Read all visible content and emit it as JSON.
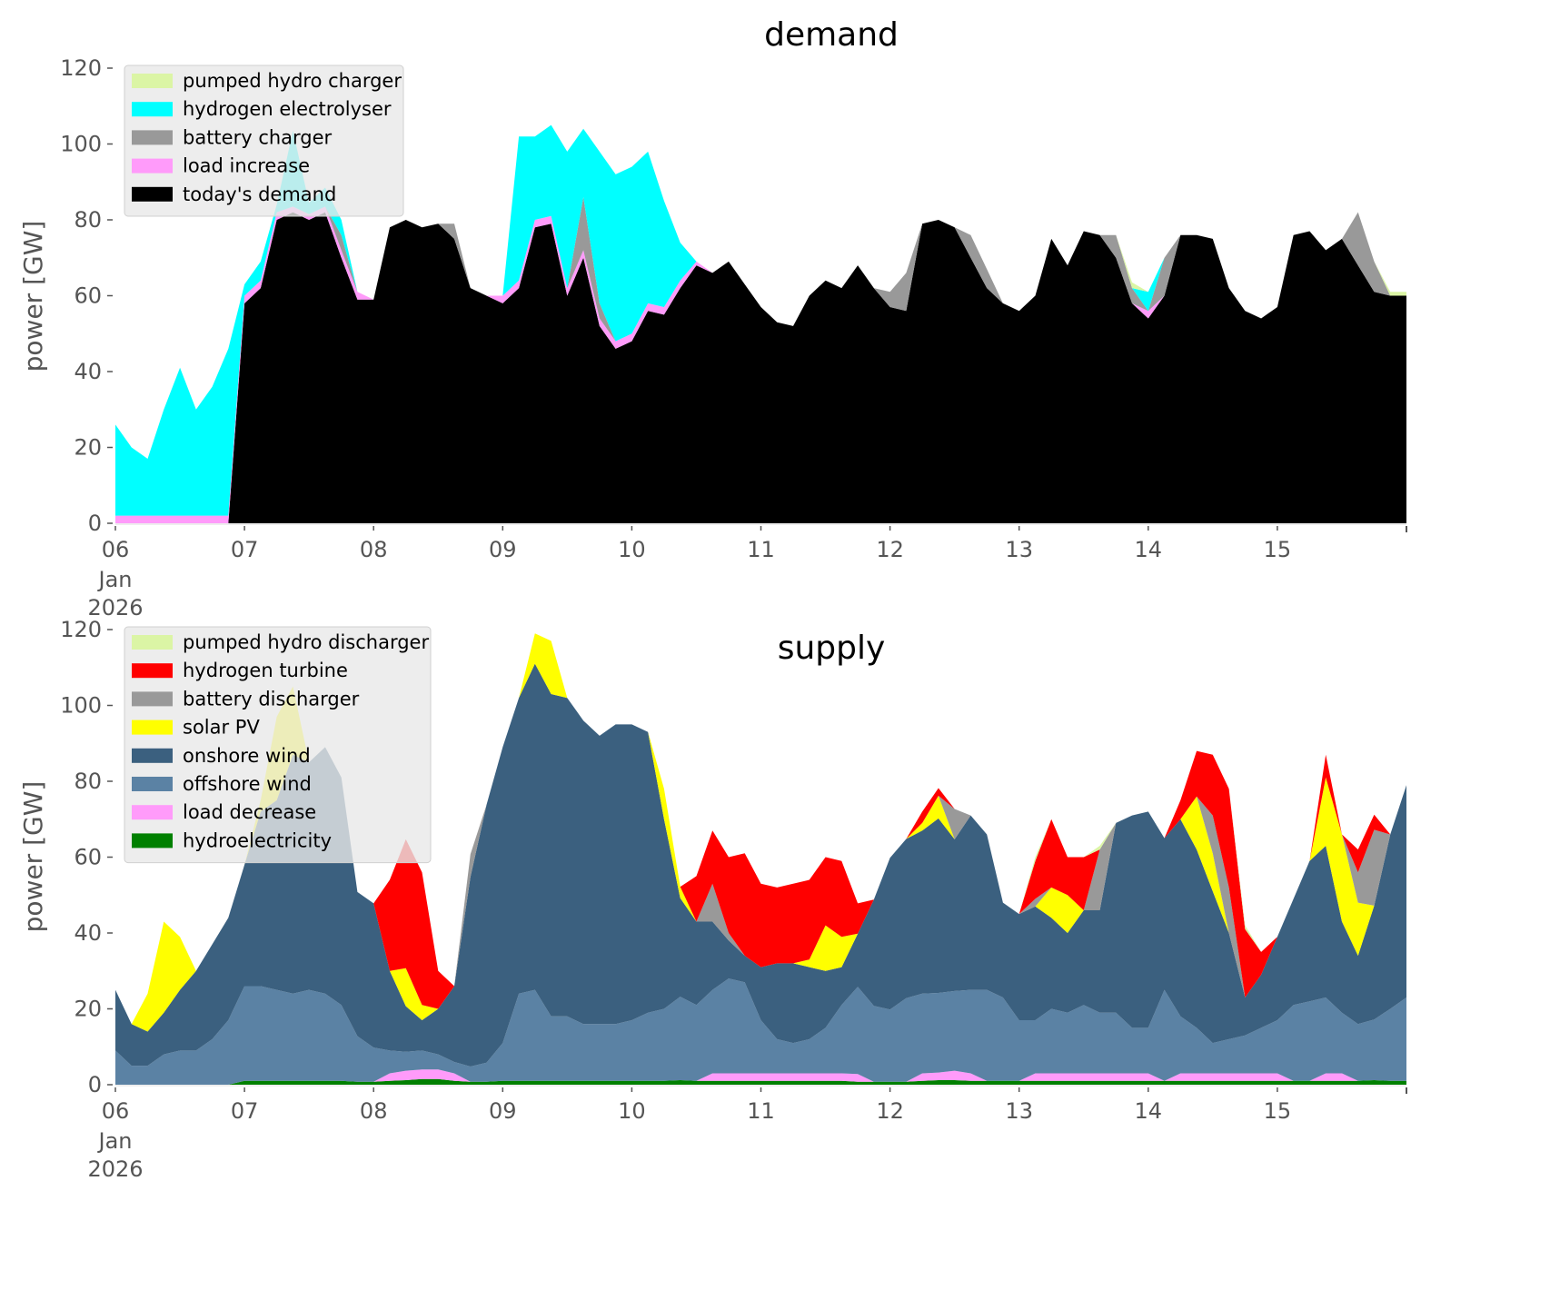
{
  "chart_data": [
    {
      "type": "area",
      "stacked": true,
      "title": "demand",
      "xlabel": "",
      "ylabel": "power [GW]",
      "ylim": [
        0,
        120
      ],
      "yticks": [
        0,
        20,
        40,
        60,
        80,
        100,
        120
      ],
      "x_unit": "days since 06 Jan 2026 00:00",
      "xlim": [
        0,
        10
      ],
      "x_step_hours": 3,
      "xtick_labels": [
        "06",
        "07",
        "08",
        "09",
        "10",
        "11",
        "12",
        "13",
        "14",
        "15"
      ],
      "xtick_sublabel": [
        "Jan",
        "2026"
      ],
      "grid": false,
      "legend_position": "top-left",
      "legend": [
        "pumped hydro charger",
        "hydrogen electrolyser",
        "battery charger",
        "load increase",
        "today's demand"
      ],
      "series": [
        {
          "name": "today's demand",
          "color": "#000000",
          "values": [
            0,
            0,
            0,
            0,
            0,
            0,
            0,
            0,
            58,
            62,
            80,
            82,
            80,
            82,
            70,
            59,
            59,
            78,
            80,
            78,
            79,
            75,
            62,
            60,
            58,
            62,
            78,
            79,
            60,
            70,
            52,
            46,
            48,
            56,
            55,
            62,
            68,
            66,
            69,
            63,
            57,
            53,
            52,
            60,
            64,
            62,
            68,
            62,
            57,
            56,
            79,
            80,
            78,
            70,
            62,
            58,
            56,
            60,
            75,
            68,
            77,
            76,
            70,
            58,
            54,
            60,
            76,
            76,
            75,
            62,
            56,
            54,
            57,
            76,
            77,
            72,
            75,
            68,
            61,
            60,
            60
          ]
        },
        {
          "name": "load increase",
          "color": "#ff9bfa",
          "values": [
            2,
            2,
            2,
            2,
            2,
            2,
            2,
            2,
            2,
            2,
            2,
            1.5,
            1.5,
            1.5,
            2,
            2,
            0,
            0,
            0,
            0,
            0,
            0,
            0,
            0,
            2,
            2,
            2,
            2,
            2,
            2,
            2,
            2,
            2,
            2,
            2,
            2,
            1,
            0,
            0,
            0,
            0,
            0,
            0,
            0,
            0,
            0,
            0,
            0,
            0,
            0,
            0,
            0,
            0,
            0,
            0,
            0,
            0,
            0,
            0,
            0,
            0,
            0,
            0,
            0,
            2,
            0,
            0,
            0,
            0,
            0,
            0,
            0,
            0,
            0,
            0,
            0,
            0,
            0,
            0,
            0,
            0
          ]
        },
        {
          "name": "battery charger",
          "color": "#999999",
          "values": [
            0,
            0,
            0,
            0,
            0,
            0,
            0,
            0,
            0,
            0,
            0,
            0,
            0,
            0,
            4,
            0,
            0,
            0,
            0,
            0,
            0,
            4,
            0,
            0,
            0,
            0,
            0,
            0,
            0,
            14,
            4,
            0,
            0,
            0,
            0,
            0,
            0,
            0,
            0,
            0,
            0,
            0,
            0,
            0,
            0,
            0,
            0,
            0,
            4,
            10,
            0,
            0,
            0,
            6,
            5,
            0,
            0,
            0,
            0,
            0,
            0,
            0,
            6,
            4,
            0,
            10,
            0,
            0,
            0,
            0,
            0,
            0,
            0,
            0,
            0,
            0,
            0,
            14,
            8,
            0,
            0
          ]
        },
        {
          "name": "hydrogen electrolyser",
          "color": "#00ffff",
          "values": [
            24,
            18,
            15,
            28,
            39,
            28,
            34,
            44,
            3,
            5,
            2,
            20,
            3,
            5,
            4,
            0,
            0,
            0,
            0,
            0,
            0,
            0,
            0,
            0,
            0,
            38,
            22,
            24,
            36,
            18,
            40,
            44,
            44,
            40,
            28,
            10,
            0,
            0,
            0,
            0,
            0,
            0,
            0,
            0,
            0,
            0,
            0,
            0,
            0,
            0,
            0,
            0,
            0,
            0,
            0,
            0,
            0,
            0,
            0,
            0,
            0,
            0,
            0,
            0,
            5,
            0,
            0,
            0,
            0,
            0,
            0,
            0,
            0,
            0,
            0,
            0,
            0,
            0,
            0,
            0,
            0
          ]
        },
        {
          "name": "pumped hydro charger",
          "color": "#dbf5a5",
          "values": [
            0,
            0,
            0,
            0,
            0,
            0,
            0,
            0,
            0,
            0,
            0,
            0,
            0,
            0,
            0,
            0,
            0,
            0,
            0,
            0,
            0,
            0,
            0,
            0,
            0,
            0,
            0,
            0,
            0,
            0,
            0,
            0,
            0,
            0,
            0,
            0,
            0,
            0,
            0,
            0,
            0,
            0,
            0,
            0,
            0,
            0,
            0,
            0,
            0,
            0,
            0,
            0,
            0,
            0,
            0,
            0,
            0,
            0,
            0,
            0,
            0,
            0,
            0,
            1.5,
            0,
            0,
            0,
            0,
            0,
            0,
            0,
            0,
            0,
            0,
            0,
            0,
            0,
            0,
            0,
            1,
            1
          ]
        }
      ]
    },
    {
      "type": "area",
      "stacked": true,
      "title": "supply",
      "xlabel": "",
      "ylabel": "power [GW]",
      "ylim": [
        0,
        120
      ],
      "yticks": [
        0,
        20,
        40,
        60,
        80,
        100,
        120
      ],
      "x_unit": "days since 06 Jan 2026 00:00",
      "xlim": [
        0,
        10
      ],
      "x_step_hours": 3,
      "xtick_labels": [
        "06",
        "07",
        "08",
        "09",
        "10",
        "11",
        "12",
        "13",
        "14",
        "15"
      ],
      "xtick_sublabel": [
        "Jan",
        "2026"
      ],
      "grid": false,
      "legend_position": "top-left",
      "legend": [
        "pumped hydro discharger",
        "hydrogen turbine",
        "battery discharger",
        "solar PV",
        "onshore wind",
        "offshore wind",
        "load decrease",
        "hydroelectricity"
      ],
      "series": [
        {
          "name": "hydroelectricity",
          "color": "#008000",
          "values": [
            0,
            0,
            0,
            0,
            0,
            0,
            0,
            0,
            1,
            1,
            1,
            1,
            1,
            1,
            1,
            0.8,
            0.8,
            1,
            1.2,
            1.5,
            1.5,
            1,
            0.8,
            0.8,
            1,
            1,
            1,
            1,
            1,
            1,
            1,
            1,
            1,
            1,
            1,
            1.2,
            1,
            1,
            1,
            1,
            1,
            1,
            1,
            1,
            1,
            1,
            0.8,
            0.8,
            0.8,
            0.8,
            1,
            1.2,
            1.2,
            1,
            1,
            1,
            1,
            1,
            1,
            1,
            1,
            1,
            1,
            1,
            1,
            1,
            1,
            1,
            1,
            1,
            1,
            1,
            1,
            1,
            1,
            1,
            1,
            1,
            1.2,
            1,
            1
          ]
        },
        {
          "name": "load decrease",
          "color": "#ff9bfa",
          "values": [
            0,
            0,
            0,
            0,
            0,
            0,
            0,
            0,
            0,
            0,
            0,
            0,
            0,
            0,
            0,
            0,
            0,
            2,
            2.5,
            2.5,
            2.5,
            2,
            0,
            0,
            0,
            0,
            0,
            0,
            0,
            0,
            0,
            0,
            0,
            0,
            0,
            0,
            0,
            2,
            2,
            2,
            2,
            2,
            2,
            2,
            2,
            2,
            2,
            0,
            0,
            0,
            2,
            2,
            2.5,
            2,
            0,
            0,
            0,
            2,
            2,
            2,
            2,
            2,
            2,
            2,
            2,
            0,
            2,
            2,
            2,
            2,
            2,
            2,
            2,
            0,
            0,
            2,
            2,
            0,
            0,
            0,
            0
          ]
        },
        {
          "name": "offshore wind",
          "color": "#5b82a4",
          "values": [
            9,
            5,
            5,
            8,
            9,
            9,
            12,
            17,
            25,
            25,
            24,
            23,
            24,
            23,
            20,
            12,
            9,
            6,
            5,
            5,
            4,
            3,
            4,
            5,
            10,
            23,
            24,
            17,
            17,
            15,
            15,
            15,
            16,
            18,
            19,
            22,
            20,
            22,
            25,
            24,
            14,
            9,
            8,
            9,
            12,
            18,
            23,
            20,
            19,
            22,
            21,
            21,
            21,
            22,
            24,
            22,
            16,
            14,
            17,
            16,
            18,
            16,
            16,
            12,
            12,
            24,
            15,
            12,
            8,
            9,
            10,
            12,
            14,
            20,
            21,
            20,
            16,
            15,
            16,
            19,
            22
          ]
        },
        {
          "name": "onshore wind",
          "color": "#3b607f",
          "values": [
            16,
            11,
            9,
            11,
            16,
            21,
            25,
            27,
            32,
            46,
            50,
            63,
            60,
            65,
            60,
            38,
            38,
            21,
            12,
            8,
            12,
            20,
            50,
            68,
            78,
            78,
            86,
            85,
            84,
            80,
            76,
            79,
            78,
            74,
            50,
            26,
            22,
            18,
            10,
            7,
            14,
            20,
            21,
            19,
            15,
            10,
            14,
            28,
            40,
            42,
            43,
            46,
            40,
            46,
            41,
            25,
            28,
            30,
            24,
            21,
            25,
            27,
            50,
            56,
            57,
            40,
            52,
            47,
            40,
            28,
            10,
            14,
            22,
            28,
            37,
            40,
            24,
            18,
            30,
            46,
            56
          ]
        },
        {
          "name": "solar PV",
          "color": "#ffff00",
          "values": [
            0,
            0,
            10,
            24,
            14,
            0,
            0,
            0,
            0,
            3,
            22,
            18,
            0,
            0,
            0,
            0,
            0,
            0,
            10,
            4,
            0,
            0,
            0,
            0,
            0,
            0,
            8,
            14,
            0,
            0,
            0,
            0,
            0,
            0,
            8,
            3,
            0,
            0,
            0,
            0,
            0,
            0,
            0,
            2,
            12,
            8,
            0,
            0,
            0,
            0,
            2,
            6,
            0,
            0,
            0,
            0,
            0,
            0,
            8,
            10,
            0,
            0,
            0,
            0,
            0,
            0,
            0,
            14,
            10,
            0,
            0,
            0,
            0,
            0,
            0,
            18,
            23,
            14,
            0,
            0,
            0
          ]
        },
        {
          "name": "battery discharger",
          "color": "#999999",
          "values": [
            0,
            0,
            0,
            0,
            0,
            0,
            0,
            0,
            0,
            0,
            0,
            0,
            0,
            0,
            0,
            0,
            0,
            0,
            0,
            0,
            0,
            0,
            6,
            0,
            0,
            0,
            0,
            0,
            0,
            0,
            0,
            0,
            0,
            0,
            0,
            0,
            0,
            10,
            2,
            0,
            0,
            0,
            0,
            0,
            0,
            0,
            0,
            0,
            0,
            0,
            0,
            0,
            8,
            0,
            0,
            0,
            0,
            2,
            0,
            0,
            0,
            16,
            0,
            0,
            0,
            0,
            0,
            0,
            10,
            12,
            0,
            0,
            0,
            0,
            0,
            0,
            0,
            8,
            20,
            0,
            0
          ]
        },
        {
          "name": "hydrogen turbine",
          "color": "#ff0000",
          "values": [
            0,
            0,
            0,
            0,
            0,
            0,
            0,
            0,
            0,
            0,
            0,
            0,
            0,
            0,
            0,
            0,
            0,
            24,
            34,
            35,
            10,
            0,
            0,
            0,
            0,
            0,
            0,
            0,
            0,
            0,
            0,
            0,
            0,
            0,
            0,
            0,
            12,
            14,
            20,
            27,
            22,
            20,
            21,
            21,
            18,
            20,
            8,
            0,
            0,
            0,
            3,
            2,
            0,
            0,
            0,
            0,
            0,
            10,
            18,
            10,
            14,
            0,
            0,
            0,
            0,
            0,
            5,
            12,
            16,
            26,
            18,
            6,
            0,
            0,
            0,
            6,
            0,
            6,
            4,
            0,
            0
          ]
        },
        {
          "name": "pumped hydro discharger",
          "color": "#dbf5a5",
          "values": [
            0,
            0,
            0,
            0,
            0,
            0,
            0,
            0,
            0,
            0,
            0,
            0,
            0,
            0,
            0,
            0,
            0,
            0,
            0,
            0,
            0,
            0,
            0,
            0,
            0,
            0,
            0,
            0,
            0,
            0,
            0,
            0,
            0,
            0,
            0,
            0,
            0,
            0,
            0,
            0,
            0,
            0,
            0,
            0,
            0,
            0,
            0,
            0,
            0,
            0,
            0,
            0,
            0,
            0,
            0,
            0,
            0,
            1,
            0,
            0,
            0,
            1,
            0,
            0,
            0,
            0,
            0,
            0,
            0,
            0,
            1,
            0,
            0,
            0,
            0,
            0,
            0,
            0,
            0,
            0,
            0
          ]
        }
      ]
    }
  ]
}
